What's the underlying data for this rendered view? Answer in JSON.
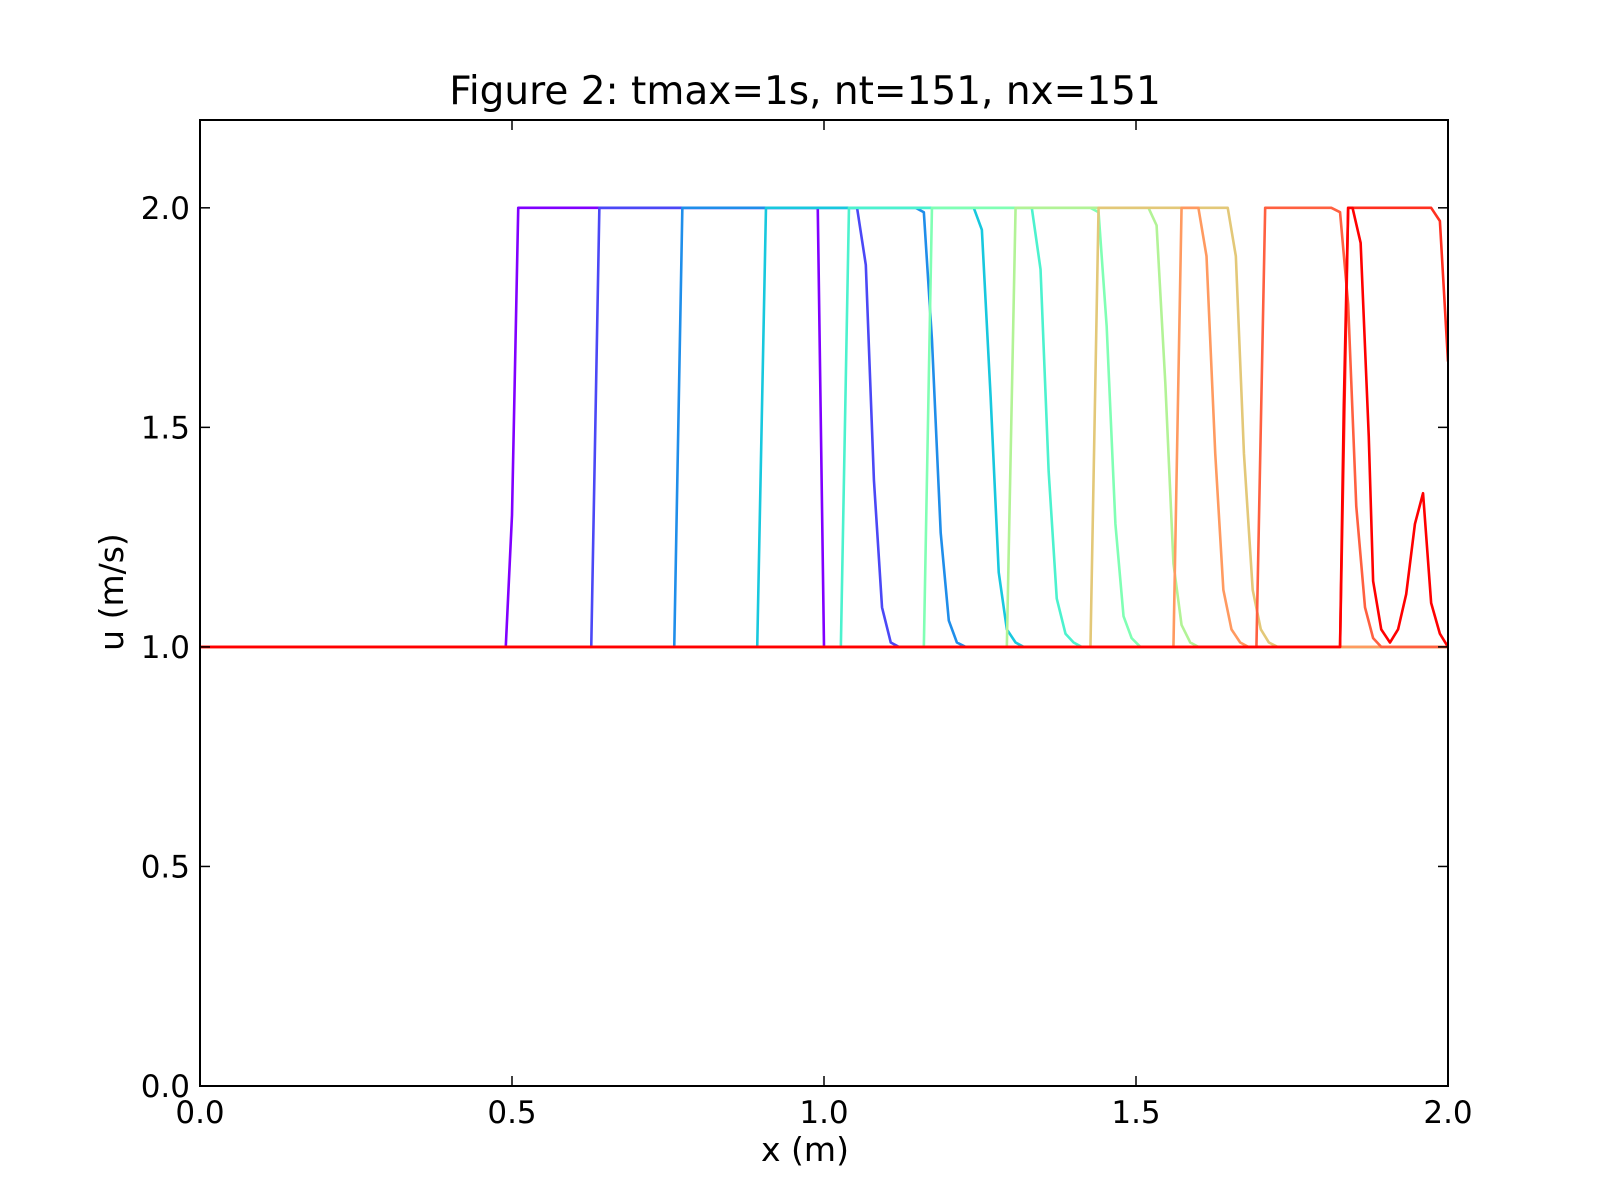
{
  "chart_data": {
    "type": "line",
    "title": "Figure 2: tmax=1s, nt=151, nx=151",
    "xlabel": "x (m)",
    "ylabel": "u (m/s)",
    "xlim": [
      0,
      2
    ],
    "ylim": [
      0,
      2.2
    ],
    "xticks": [
      0,
      0.5,
      1,
      1.5,
      2
    ],
    "yticks": [
      0,
      0.5,
      1,
      1.5,
      2
    ],
    "xtick_labels": [
      "0.0",
      "0.5",
      "1.0",
      "1.5",
      "2.0"
    ],
    "ytick_labels": [
      "0.0",
      "0.5",
      "1.0",
      "1.5",
      "2.0"
    ],
    "grid": false,
    "legend": "none",
    "series": [
      {
        "color": "#8000ff",
        "x": [
          0,
          0.49,
          0.5,
          0.51,
          0.99,
          1.0,
          1.01,
          2.0
        ],
        "y": [
          1,
          1,
          1.3,
          2.0,
          2.0,
          1.0,
          1.0,
          1.0
        ]
      },
      {
        "color": "#4b48f6",
        "x": [
          0,
          0.627,
          0.64,
          1.053,
          1.067,
          1.08,
          1.093,
          1.107,
          1.12,
          2.0
        ],
        "y": [
          1,
          1,
          2.0,
          2.0,
          1.87,
          1.38,
          1.09,
          1.01,
          1.0,
          1.0
        ]
      },
      {
        "color": "#1f8eea",
        "x": [
          0,
          0.76,
          0.773,
          1.147,
          1.16,
          1.173,
          1.187,
          1.2,
          1.213,
          1.227,
          2.0
        ],
        "y": [
          1,
          1,
          2.0,
          2.0,
          1.99,
          1.7,
          1.26,
          1.06,
          1.01,
          1.0,
          1.0
        ]
      },
      {
        "color": "#18c8de",
        "x": [
          0,
          0.893,
          0.907,
          1.24,
          1.253,
          1.267,
          1.28,
          1.293,
          1.307,
          1.32,
          2.0
        ],
        "y": [
          1,
          1,
          2.0,
          2.0,
          1.95,
          1.57,
          1.17,
          1.04,
          1.01,
          1.0,
          1.0
        ]
      },
      {
        "color": "#4cf2ce",
        "x": [
          0,
          1.027,
          1.04,
          1.333,
          1.347,
          1.36,
          1.373,
          1.387,
          1.4,
          1.413,
          2.0
        ],
        "y": [
          1,
          1,
          2.0,
          2.0,
          1.86,
          1.4,
          1.11,
          1.03,
          1.01,
          1.0,
          1.0
        ]
      },
      {
        "color": "#80ffb4",
        "x": [
          0,
          1.16,
          1.173,
          1.427,
          1.44,
          1.453,
          1.467,
          1.48,
          1.493,
          1.507,
          2.0
        ],
        "y": [
          1,
          1,
          2.0,
          2.0,
          1.99,
          1.73,
          1.28,
          1.07,
          1.02,
          1.0,
          1.0
        ]
      },
      {
        "color": "#b2f396",
        "x": [
          0,
          1.293,
          1.307,
          1.52,
          1.533,
          1.547,
          1.56,
          1.573,
          1.587,
          1.6,
          2.0
        ],
        "y": [
          1,
          1,
          2.0,
          2.0,
          1.96,
          1.6,
          1.19,
          1.05,
          1.01,
          1.0,
          1.0
        ]
      },
      {
        "color": "#e3c878",
        "x": [
          0,
          1.427,
          1.44,
          1.647,
          1.66,
          1.673,
          1.687,
          1.7,
          1.713,
          1.727,
          2.0
        ],
        "y": [
          1,
          1,
          2.0,
          2.0,
          1.89,
          1.44,
          1.13,
          1.04,
          1.01,
          1.0,
          1.0
        ]
      },
      {
        "color": "#ff9a60",
        "x": [
          0,
          1.56,
          1.573,
          1.58,
          1.6,
          1.613,
          1.627,
          1.64,
          1.653,
          1.667,
          1.68,
          2.0
        ],
        "y": [
          1,
          1,
          2.0,
          2.0,
          2.0,
          1.89,
          1.44,
          1.13,
          1.04,
          1.01,
          1.0,
          1.0
        ]
      },
      {
        "color": "#ff6040",
        "x": [
          0,
          1.693,
          1.707,
          1.813,
          1.827,
          1.84,
          1.853,
          1.867,
          1.88,
          1.893,
          2.0
        ],
        "y": [
          1,
          1,
          2.0,
          2.0,
          1.99,
          1.78,
          1.32,
          1.09,
          1.02,
          1.0,
          1.0
        ]
      },
      {
        "color": "#ff3020",
        "x": [
          0,
          1.827,
          1.84,
          1.973,
          1.987,
          2.0
        ],
        "y": [
          1,
          1,
          2.0,
          2.0,
          1.97,
          1.65
        ]
      },
      {
        "color": "#ff0000",
        "x": [
          0,
          1.827,
          1.833,
          1.84,
          1.847,
          1.86,
          1.873,
          1.88,
          1.893,
          1.907,
          1.92,
          1.933,
          1.947,
          1.96,
          1.973,
          1.987,
          2.0
        ],
        "y": [
          1,
          1,
          1.55,
          2.0,
          2.0,
          1.92,
          1.48,
          1.15,
          1.04,
          1.01,
          1.04,
          1.12,
          1.28,
          1.35,
          1.1,
          1.03,
          1.0
        ]
      }
    ]
  }
}
